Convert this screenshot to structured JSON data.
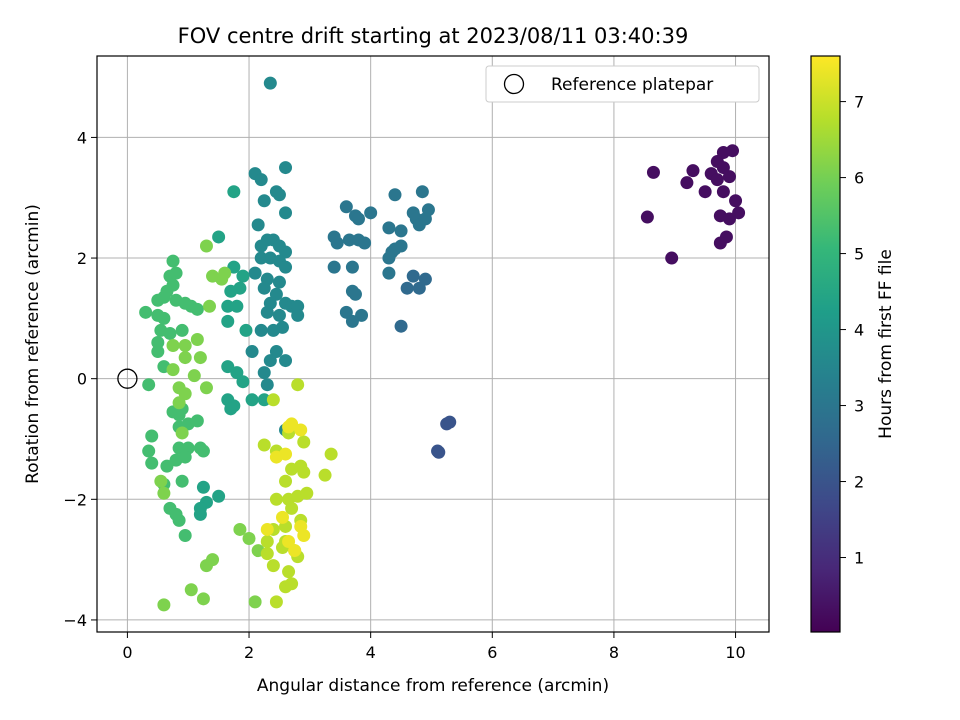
{
  "chart_data": {
    "type": "scatter",
    "title": "FOV centre drift starting at 2023/08/11 03:40:39",
    "xlabel": "Angular distance from reference (arcmin)",
    "ylabel": "Rotation from reference (arcmin)",
    "xlim": [
      -0.5,
      10.55
    ],
    "ylim": [
      -4.2,
      5.35
    ],
    "xticks": [
      0,
      2,
      4,
      6,
      8,
      10
    ],
    "yticks": [
      -4,
      -2,
      0,
      2,
      4
    ],
    "grid": true,
    "legend": {
      "label": "Reference platepar",
      "placement": "top-right"
    },
    "reference_point": {
      "x": 0,
      "y": 0
    },
    "colorbar": {
      "label": "Hours from first FF file",
      "colormap": "viridis",
      "range": [
        0.02,
        7.6
      ],
      "ticks": [
        1,
        2,
        3,
        4,
        5,
        6,
        7
      ]
    },
    "colors": {
      "viridis": [
        "#440154",
        "#482878",
        "#3e4989",
        "#31688e",
        "#26828e",
        "#1f9e89",
        "#35b779",
        "#6ece58",
        "#b5de2b",
        "#fde725"
      ]
    },
    "series": [
      {
        "t": 0.3,
        "points": [
          [
            9.8,
            3.75
          ],
          [
            9.95,
            3.78
          ],
          [
            9.7,
            3.6
          ],
          [
            9.8,
            3.5
          ],
          [
            9.6,
            3.4
          ],
          [
            9.7,
            3.3
          ],
          [
            9.9,
            3.35
          ],
          [
            9.5,
            3.1
          ],
          [
            9.8,
            3.1
          ],
          [
            10.0,
            2.95
          ],
          [
            9.3,
            3.45
          ],
          [
            9.2,
            3.25
          ],
          [
            8.65,
            3.42
          ],
          [
            8.55,
            2.68
          ],
          [
            9.75,
            2.7
          ],
          [
            9.9,
            2.65
          ],
          [
            10.05,
            2.75
          ],
          [
            9.85,
            2.35
          ],
          [
            9.75,
            2.25
          ],
          [
            8.95,
            2.0
          ]
        ]
      },
      {
        "t": 2.0,
        "points": [
          [
            5.25,
            -0.75
          ],
          [
            5.3,
            -0.72
          ],
          [
            5.1,
            -1.2
          ],
          [
            5.12,
            -1.22
          ]
        ]
      },
      {
        "t": 2.6,
        "points": [
          [
            4.5,
            0.87
          ],
          [
            4.8,
            1.5
          ],
          [
            4.6,
            1.5
          ],
          [
            4.7,
            1.7
          ],
          [
            4.9,
            1.65
          ]
        ]
      },
      {
        "t": 3.0,
        "points": [
          [
            3.6,
            2.85
          ],
          [
            3.75,
            2.7
          ],
          [
            3.8,
            2.65
          ],
          [
            3.65,
            2.3
          ],
          [
            3.8,
            2.3
          ],
          [
            3.9,
            2.25
          ],
          [
            3.4,
            2.35
          ],
          [
            3.45,
            2.25
          ],
          [
            3.7,
            1.85
          ],
          [
            3.4,
            1.85
          ],
          [
            3.7,
            1.45
          ],
          [
            3.75,
            1.4
          ],
          [
            3.6,
            1.1
          ],
          [
            3.85,
            1.05
          ],
          [
            3.7,
            0.95
          ],
          [
            4.0,
            2.75
          ],
          [
            4.3,
            2.5
          ],
          [
            4.5,
            2.45
          ],
          [
            4.35,
            2.1
          ],
          [
            4.4,
            2.15
          ],
          [
            4.5,
            2.2
          ],
          [
            4.3,
            2.0
          ],
          [
            4.3,
            1.75
          ],
          [
            4.4,
            3.05
          ],
          [
            4.7,
            2.75
          ],
          [
            4.75,
            2.65
          ],
          [
            4.8,
            2.55
          ],
          [
            4.9,
            2.65
          ],
          [
            4.85,
            3.1
          ],
          [
            4.95,
            2.8
          ]
        ]
      },
      {
        "t": 3.6,
        "points": [
          [
            2.35,
            4.9
          ],
          [
            2.1,
            3.4
          ],
          [
            2.2,
            3.3
          ],
          [
            2.6,
            3.5
          ],
          [
            2.45,
            3.1
          ],
          [
            2.5,
            3.05
          ],
          [
            2.25,
            2.95
          ],
          [
            2.6,
            2.75
          ],
          [
            2.15,
            2.55
          ],
          [
            2.3,
            2.3
          ],
          [
            2.2,
            2.2
          ],
          [
            2.4,
            2.3
          ],
          [
            2.5,
            2.2
          ],
          [
            2.6,
            2.1
          ],
          [
            2.2,
            2.0
          ],
          [
            2.35,
            2.0
          ],
          [
            2.5,
            1.95
          ],
          [
            2.6,
            1.85
          ],
          [
            2.1,
            1.75
          ],
          [
            2.3,
            1.65
          ],
          [
            2.5,
            1.6
          ],
          [
            2.25,
            1.5
          ],
          [
            2.45,
            1.4
          ],
          [
            2.6,
            1.25
          ],
          [
            2.35,
            1.25
          ],
          [
            2.3,
            1.1
          ],
          [
            2.5,
            1.05
          ],
          [
            2.7,
            1.2
          ],
          [
            2.8,
            1.2
          ],
          [
            2.8,
            1.05
          ],
          [
            2.55,
            0.85
          ],
          [
            2.4,
            0.8
          ],
          [
            2.2,
            0.8
          ],
          [
            2.05,
            0.45
          ],
          [
            2.45,
            0.45
          ],
          [
            2.35,
            0.3
          ],
          [
            2.6,
            0.3
          ],
          [
            2.25,
            0.1
          ],
          [
            2.3,
            -0.1
          ],
          [
            2.6,
            -0.85
          ]
        ]
      },
      {
        "t": 4.4,
        "points": [
          [
            1.75,
            3.1
          ],
          [
            1.5,
            2.35
          ],
          [
            1.75,
            1.85
          ],
          [
            1.9,
            1.7
          ],
          [
            1.85,
            1.5
          ],
          [
            1.7,
            1.45
          ],
          [
            1.65,
            1.2
          ],
          [
            1.8,
            1.2
          ],
          [
            1.65,
            0.95
          ],
          [
            1.95,
            0.8
          ],
          [
            1.65,
            0.2
          ],
          [
            1.8,
            0.1
          ],
          [
            1.9,
            -0.05
          ],
          [
            1.65,
            -0.35
          ],
          [
            1.75,
            -0.45
          ],
          [
            1.7,
            -0.5
          ],
          [
            2.05,
            -0.35
          ],
          [
            2.25,
            -0.35
          ],
          [
            1.5,
            -1.95
          ],
          [
            1.25,
            -1.8
          ],
          [
            1.3,
            -2.05
          ],
          [
            1.2,
            -2.15
          ],
          [
            1.2,
            -2.25
          ]
        ]
      },
      {
        "t": 5.3,
        "points": [
          [
            0.75,
            1.95
          ],
          [
            0.7,
            1.7
          ],
          [
            0.8,
            1.75
          ],
          [
            0.75,
            1.55
          ],
          [
            0.65,
            1.45
          ],
          [
            0.5,
            1.3
          ],
          [
            0.6,
            1.35
          ],
          [
            0.8,
            1.3
          ],
          [
            0.5,
            1.05
          ],
          [
            0.6,
            1.0
          ],
          [
            0.55,
            0.8
          ],
          [
            0.5,
            0.6
          ],
          [
            0.5,
            0.45
          ],
          [
            0.3,
            1.1
          ],
          [
            0.95,
            1.25
          ],
          [
            1.05,
            1.2
          ],
          [
            0.7,
            0.75
          ],
          [
            1.15,
            1.15
          ],
          [
            0.9,
            0.8
          ],
          [
            0.6,
            0.2
          ],
          [
            0.35,
            -0.1
          ],
          [
            0.4,
            -0.95
          ],
          [
            0.35,
            -1.2
          ],
          [
            0.4,
            -1.4
          ],
          [
            0.75,
            -0.55
          ],
          [
            0.85,
            -0.6
          ],
          [
            0.9,
            -0.5
          ],
          [
            0.85,
            -0.8
          ],
          [
            1.0,
            -0.75
          ],
          [
            1.15,
            -0.7
          ],
          [
            0.85,
            -1.15
          ],
          [
            1.0,
            -1.15
          ],
          [
            1.2,
            -1.15
          ],
          [
            1.25,
            -1.2
          ],
          [
            0.8,
            -1.35
          ],
          [
            0.65,
            -1.45
          ],
          [
            0.95,
            -1.3
          ],
          [
            0.9,
            -1.7
          ],
          [
            0.6,
            -1.75
          ],
          [
            0.7,
            -2.15
          ],
          [
            0.8,
            -2.25
          ],
          [
            0.85,
            -2.35
          ],
          [
            0.95,
            -2.6
          ]
        ]
      },
      {
        "t": 6.1,
        "points": [
          [
            1.3,
            2.2
          ],
          [
            1.4,
            1.7
          ],
          [
            1.55,
            1.65
          ],
          [
            1.6,
            1.75
          ],
          [
            1.35,
            1.2
          ],
          [
            1.15,
            0.65
          ],
          [
            0.95,
            0.55
          ],
          [
            0.75,
            0.55
          ],
          [
            0.95,
            0.35
          ],
          [
            1.2,
            0.35
          ],
          [
            0.75,
            0.15
          ],
          [
            1.1,
            0.05
          ],
          [
            1.3,
            -0.15
          ],
          [
            0.85,
            -0.15
          ],
          [
            0.95,
            -0.25
          ],
          [
            0.85,
            -0.4
          ],
          [
            0.9,
            -0.9
          ],
          [
            0.55,
            -1.7
          ],
          [
            0.6,
            -1.9
          ],
          [
            0.6,
            -3.75
          ],
          [
            1.05,
            -3.5
          ],
          [
            1.25,
            -3.65
          ],
          [
            1.3,
            -3.1
          ],
          [
            1.4,
            -3.0
          ],
          [
            1.85,
            -2.5
          ],
          [
            2.0,
            -2.65
          ],
          [
            2.15,
            -2.85
          ],
          [
            2.1,
            -3.7
          ]
        ]
      },
      {
        "t": 6.8,
        "points": [
          [
            2.8,
            -0.1
          ],
          [
            2.4,
            -0.35
          ],
          [
            2.25,
            -1.1
          ],
          [
            2.45,
            -1.2
          ],
          [
            2.65,
            -0.9
          ],
          [
            2.9,
            -1.05
          ],
          [
            2.7,
            -1.5
          ],
          [
            2.85,
            -1.45
          ],
          [
            2.9,
            -1.55
          ],
          [
            2.6,
            -1.7
          ],
          [
            2.45,
            -2.0
          ],
          [
            2.65,
            -2.0
          ],
          [
            2.8,
            -1.95
          ],
          [
            2.7,
            -2.15
          ],
          [
            2.95,
            -1.9
          ],
          [
            2.85,
            -2.35
          ],
          [
            2.6,
            -2.45
          ],
          [
            2.4,
            -2.5
          ],
          [
            2.6,
            -2.7
          ],
          [
            2.55,
            -2.8
          ],
          [
            2.3,
            -2.7
          ],
          [
            2.3,
            -2.9
          ],
          [
            2.4,
            -3.1
          ],
          [
            2.65,
            -3.2
          ],
          [
            2.75,
            -2.85
          ],
          [
            2.8,
            -2.95
          ],
          [
            2.6,
            -3.45
          ],
          [
            2.7,
            -3.4
          ],
          [
            2.45,
            -3.7
          ],
          [
            3.35,
            -1.25
          ],
          [
            3.25,
            -1.6
          ]
        ]
      },
      {
        "t": 7.4,
        "points": [
          [
            2.65,
            -0.8
          ],
          [
            2.7,
            -0.75
          ],
          [
            2.85,
            -0.85
          ],
          [
            2.6,
            -1.25
          ],
          [
            2.45,
            -1.3
          ],
          [
            2.55,
            -2.3
          ],
          [
            2.3,
            -2.5
          ],
          [
            2.85,
            -2.45
          ],
          [
            2.9,
            -2.6
          ],
          [
            2.65,
            -2.7
          ],
          [
            2.75,
            -2.85
          ]
        ]
      }
    ]
  }
}
